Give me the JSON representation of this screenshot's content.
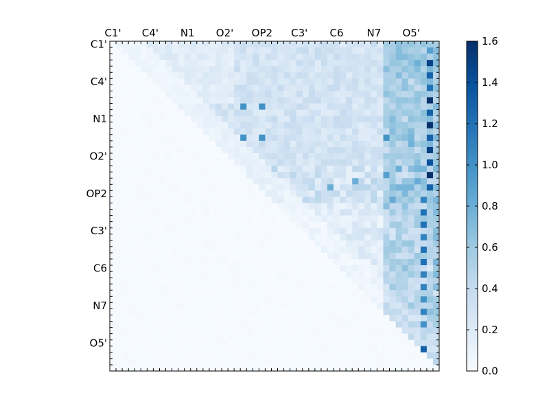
{
  "chart_data": {
    "type": "heatmap",
    "title": "",
    "xlabel": "",
    "ylabel": "",
    "grid": false,
    "n_rows": 53,
    "n_cols": 53,
    "tick_every": 6,
    "x_tick_labels": [
      "C1'",
      "C4'",
      "N1",
      "O2'",
      "OP2",
      "C3'",
      "C6",
      "N7",
      "O5'"
    ],
    "y_tick_labels": [
      "C1'",
      "C4'",
      "N1",
      "O2'",
      "OP2",
      "C3'",
      "C6",
      "N7",
      "O5'"
    ],
    "colorbar": {
      "colormap": "Blues",
      "vmin": 0.0,
      "vmax": 1.6,
      "ticks": [
        "0.0",
        "0.2",
        "0.4",
        "0.6",
        "0.8",
        "1.0",
        "1.2",
        "1.4",
        "1.6"
      ]
    },
    "colors": {
      "low": "#f7fbff",
      "high": "#08306b"
    },
    "strong_cells": [
      {
        "row": 1,
        "col": 51,
        "value": 0.9
      },
      {
        "row": 3,
        "col": 51,
        "value": 1.5
      },
      {
        "row": 5,
        "col": 51,
        "value": 1.3
      },
      {
        "row": 7,
        "col": 51,
        "value": 1.2
      },
      {
        "row": 9,
        "col": 51,
        "value": 1.6
      },
      {
        "row": 11,
        "col": 51,
        "value": 1.3
      },
      {
        "row": 13,
        "col": 51,
        "value": 1.6
      },
      {
        "row": 15,
        "col": 51,
        "value": 1.3
      },
      {
        "row": 17,
        "col": 51,
        "value": 1.5
      },
      {
        "row": 19,
        "col": 51,
        "value": 1.4
      },
      {
        "row": 21,
        "col": 51,
        "value": 1.6
      },
      {
        "row": 23,
        "col": 51,
        "value": 1.3
      },
      {
        "row": 25,
        "col": 50,
        "value": 1.1
      },
      {
        "row": 27,
        "col": 50,
        "value": 1.2
      },
      {
        "row": 29,
        "col": 50,
        "value": 1.2
      },
      {
        "row": 31,
        "col": 50,
        "value": 1.1
      },
      {
        "row": 33,
        "col": 50,
        "value": 1.2
      },
      {
        "row": 35,
        "col": 50,
        "value": 1.2
      },
      {
        "row": 37,
        "col": 50,
        "value": 1.1
      },
      {
        "row": 39,
        "col": 50,
        "value": 1.1
      },
      {
        "row": 41,
        "col": 50,
        "value": 1.0
      },
      {
        "row": 43,
        "col": 50,
        "value": 1.1
      },
      {
        "row": 45,
        "col": 50,
        "value": 1.0
      },
      {
        "row": 49,
        "col": 50,
        "value": 1.3
      },
      {
        "row": 10,
        "col": 21,
        "value": 1.0
      },
      {
        "row": 15,
        "col": 21,
        "value": 1.0
      },
      {
        "row": 15,
        "col": 24,
        "value": 1.0
      },
      {
        "row": 10,
        "col": 24,
        "value": 1.0
      },
      {
        "row": 15,
        "col": 44,
        "value": 1.0
      },
      {
        "row": 21,
        "col": 44,
        "value": 0.9
      },
      {
        "row": 23,
        "col": 35,
        "value": 0.8
      },
      {
        "row": 22,
        "col": 39,
        "value": 0.8
      }
    ]
  }
}
